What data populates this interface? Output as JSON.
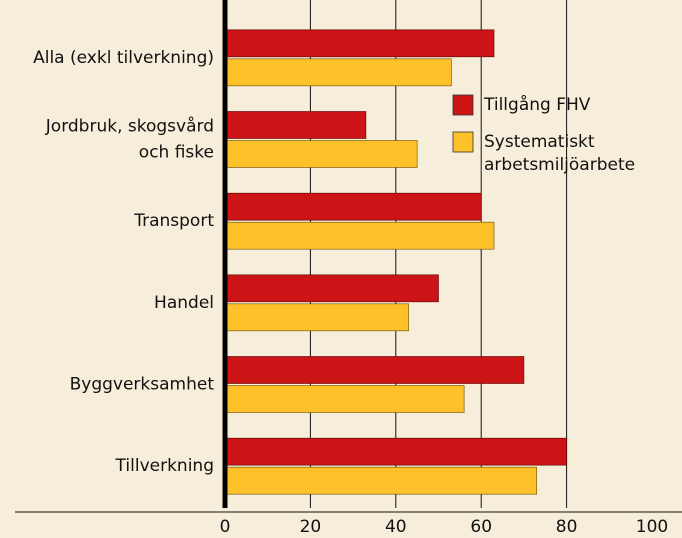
{
  "chart_data": {
    "type": "bar",
    "orientation": "horizontal",
    "categories": [
      [
        "Alla (exkl tilverkning)"
      ],
      [
        "Jordbruk, skogsvård",
        "och fiske"
      ],
      [
        "Transport"
      ],
      [
        "Handel"
      ],
      [
        "Byggverksamhet"
      ],
      [
        "Tillverkning"
      ]
    ],
    "series": [
      {
        "name": [
          "Tillgång FHV"
        ],
        "color": "#cc1417",
        "values": [
          63,
          33,
          60,
          50,
          70,
          80
        ]
      },
      {
        "name": [
          "Systematiskt",
          "arbetsmiljöarbete"
        ],
        "color": "#fdc22a",
        "values": [
          53,
          45,
          63,
          43,
          56,
          73
        ]
      }
    ],
    "xlim": [
      0,
      100
    ],
    "xticks": [
      0,
      20,
      40,
      60,
      80,
      100
    ],
    "grid": true
  }
}
